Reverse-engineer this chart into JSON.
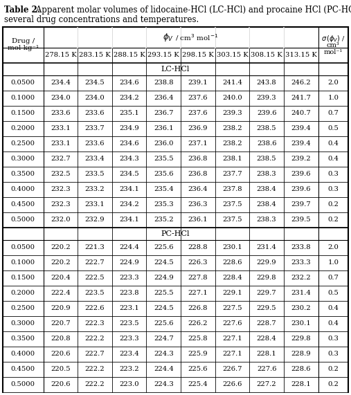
{
  "title_bold": "Table 2.",
  "title_rest": " Apparent molar volumes of lidocaine-HCl (LC-HCl) and procaine HCl (PC-HCl) at several drug concentrations and temperatures.",
  "temperatures": [
    "278.15 K",
    "283.15 K",
    "288.15 K",
    "293.15 K",
    "298.15 K",
    "303.15 K",
    "308.15 K",
    "313.15 K"
  ],
  "lc_label": "LC-HCl",
  "pc_label": "PC-HCl",
  "lc_data": [
    [
      "0.0500",
      "234.4",
      "234.5",
      "234.6",
      "238.8",
      "239.1",
      "241.4",
      "243.8",
      "246.2",
      "2.0"
    ],
    [
      "0.1000",
      "234.0",
      "234.0",
      "234.2",
      "236.4",
      "237.6",
      "240.0",
      "239.3",
      "241.7",
      "1.0"
    ],
    [
      "0.1500",
      "233.6",
      "233.6",
      "235.1",
      "236.7",
      "237.6",
      "239.3",
      "239.6",
      "240.7",
      "0.7"
    ],
    [
      "0.2000",
      "233.1",
      "233.7",
      "234.9",
      "236.1",
      "236.9",
      "238.2",
      "238.5",
      "239.4",
      "0.5"
    ],
    [
      "0.2500",
      "233.1",
      "233.6",
      "234.6",
      "236.0",
      "237.1",
      "238.2",
      "238.6",
      "239.4",
      "0.4"
    ],
    [
      "0.3000",
      "232.7",
      "233.4",
      "234.3",
      "235.5",
      "236.8",
      "238.1",
      "238.5",
      "239.2",
      "0.4"
    ],
    [
      "0.3500",
      "232.5",
      "233.5",
      "234.5",
      "235.6",
      "236.8",
      "237.7",
      "238.3",
      "239.6",
      "0.3"
    ],
    [
      "0.4000",
      "232.3",
      "233.2",
      "234.1",
      "235.4",
      "236.4",
      "237.8",
      "238.4",
      "239.6",
      "0.3"
    ],
    [
      "0.4500",
      "232.3",
      "233.1",
      "234.2",
      "235.3",
      "236.3",
      "237.5",
      "238.4",
      "239.7",
      "0.2"
    ],
    [
      "0.5000",
      "232.0",
      "232.9",
      "234.1",
      "235.2",
      "236.1",
      "237.5",
      "238.3",
      "239.5",
      "0.2"
    ]
  ],
  "pc_data": [
    [
      "0.0500",
      "220.2",
      "221.3",
      "224.4",
      "225.6",
      "228.8",
      "230.1",
      "231.4",
      "233.8",
      "2.0"
    ],
    [
      "0.1000",
      "220.2",
      "222.7",
      "224.9",
      "224.5",
      "226.3",
      "228.6",
      "229.9",
      "233.3",
      "1.0"
    ],
    [
      "0.1500",
      "220.4",
      "222.5",
      "223.3",
      "224.9",
      "227.8",
      "228.4",
      "229.8",
      "232.2",
      "0.7"
    ],
    [
      "0.2000",
      "222.4",
      "223.5",
      "223.8",
      "225.5",
      "227.1",
      "229.1",
      "229.7",
      "231.4",
      "0.5"
    ],
    [
      "0.2500",
      "220.9",
      "222.6",
      "223.1",
      "224.5",
      "226.8",
      "227.5",
      "229.5",
      "230.2",
      "0.4"
    ],
    [
      "0.3000",
      "220.7",
      "222.3",
      "223.5",
      "225.6",
      "226.2",
      "227.6",
      "228.7",
      "230.1",
      "0.4"
    ],
    [
      "0.3500",
      "220.8",
      "222.2",
      "223.3",
      "224.7",
      "225.8",
      "227.1",
      "228.4",
      "229.8",
      "0.3"
    ],
    [
      "0.4000",
      "220.6",
      "222.7",
      "223.4",
      "224.3",
      "225.9",
      "227.1",
      "228.1",
      "228.9",
      "0.3"
    ],
    [
      "0.4500",
      "220.5",
      "222.2",
      "223.2",
      "224.4",
      "225.6",
      "226.7",
      "227.6",
      "228.6",
      "0.2"
    ],
    [
      "0.5000",
      "220.6",
      "222.2",
      "223.0",
      "224.3",
      "225.4",
      "226.6",
      "227.2",
      "228.1",
      "0.2"
    ]
  ],
  "bg_color": "#ffffff",
  "figsize": [
    5.07,
    5.71
  ],
  "dpi": 100
}
